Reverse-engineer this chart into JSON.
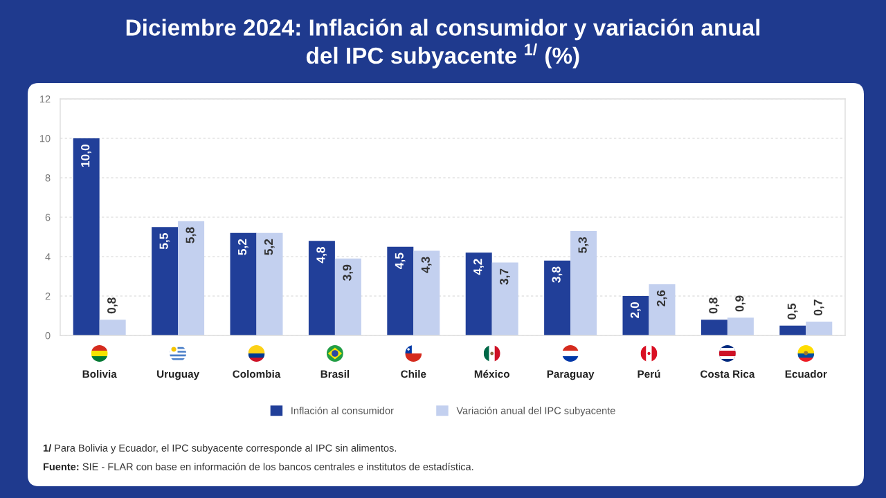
{
  "chart_data": {
    "type": "bar",
    "title": "Diciembre 2024: Inflación al consumidor y variación anual del IPC subyacente $^{1/}$ (%)",
    "categories": [
      "Bolivia",
      "Uruguay",
      "Colombia",
      "Brasil",
      "Chile",
      "México",
      "Paraguay",
      "Perú",
      "Costa Rica",
      "Ecuador"
    ],
    "series": [
      {
        "name": "Inflación al consumidor",
        "color": "#213f99",
        "values": [
          10.0,
          5.5,
          5.2,
          4.8,
          4.5,
          4.2,
          3.8,
          2.0,
          0.8,
          0.5
        ],
        "value_labels": [
          "10,0",
          "5,5",
          "5,2",
          "4,8",
          "4,5",
          "4,2",
          "3,8",
          "2,0",
          "0,8",
          "0,5"
        ]
      },
      {
        "name": "Variación anual del IPC subyacente",
        "color": "#c3d0ef",
        "values": [
          0.8,
          5.8,
          5.2,
          3.9,
          4.3,
          3.7,
          5.3,
          2.6,
          0.9,
          0.7
        ],
        "value_labels": [
          "0,8",
          "5,8",
          "5,2",
          "3,9",
          "4,3",
          "3,7",
          "5,3",
          "2,6",
          "0,9",
          "0,7"
        ]
      }
    ],
    "ylim": [
      0,
      12
    ],
    "yticks": [
      0,
      2,
      4,
      6,
      8,
      10,
      12
    ],
    "grid": "y",
    "legend": "bottom",
    "annotations": [
      "1/ Para Bolivia y Ecuador, el IPC subyacente corresponde al IPC sin alimentos.",
      "Fuente: SIE - FLAR con base en información de los bancos centrales e institutos de estadística."
    ]
  }
}
